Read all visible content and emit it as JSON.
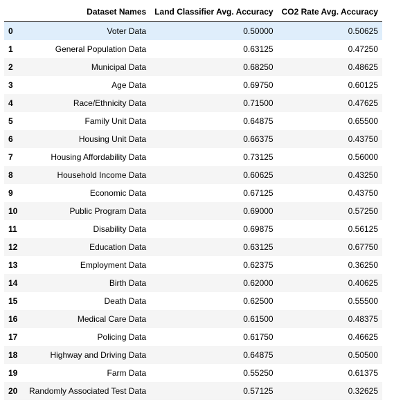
{
  "table": {
    "columns": [
      "",
      "Dataset Names",
      "Land Classifier Avg. Accuracy",
      "CO2 Rate Avg. Accuracy"
    ],
    "rows": [
      {
        "index": "0",
        "name": "Voter Data",
        "land": "0.50000",
        "co2": "0.50625"
      },
      {
        "index": "1",
        "name": "General Population Data",
        "land": "0.63125",
        "co2": "0.47250"
      },
      {
        "index": "2",
        "name": "Municipal Data",
        "land": "0.68250",
        "co2": "0.48625"
      },
      {
        "index": "3",
        "name": "Age Data",
        "land": "0.69750",
        "co2": "0.60125"
      },
      {
        "index": "4",
        "name": "Race/Ethnicity Data",
        "land": "0.71500",
        "co2": "0.47625"
      },
      {
        "index": "5",
        "name": "Family Unit Data",
        "land": "0.64875",
        "co2": "0.65500"
      },
      {
        "index": "6",
        "name": "Housing Unit Data",
        "land": "0.66375",
        "co2": "0.43750"
      },
      {
        "index": "7",
        "name": "Housing Affordability Data",
        "land": "0.73125",
        "co2": "0.56000"
      },
      {
        "index": "8",
        "name": "Household Income Data",
        "land": "0.60625",
        "co2": "0.43250"
      },
      {
        "index": "9",
        "name": "Economic Data",
        "land": "0.67125",
        "co2": "0.43750"
      },
      {
        "index": "10",
        "name": "Public Program Data",
        "land": "0.69000",
        "co2": "0.57250"
      },
      {
        "index": "11",
        "name": "Disability Data",
        "land": "0.69875",
        "co2": "0.56125"
      },
      {
        "index": "12",
        "name": "Education Data",
        "land": "0.63125",
        "co2": "0.67750"
      },
      {
        "index": "13",
        "name": "Employment Data",
        "land": "0.62375",
        "co2": "0.36250"
      },
      {
        "index": "14",
        "name": "Birth Data",
        "land": "0.62000",
        "co2": "0.40625"
      },
      {
        "index": "15",
        "name": "Death Data",
        "land": "0.62500",
        "co2": "0.55500"
      },
      {
        "index": "16",
        "name": "Medical Care Data",
        "land": "0.61500",
        "co2": "0.48375"
      },
      {
        "index": "17",
        "name": "Policing Data",
        "land": "0.61750",
        "co2": "0.46625"
      },
      {
        "index": "18",
        "name": "Highway and Driving Data",
        "land": "0.64875",
        "co2": "0.50500"
      },
      {
        "index": "19",
        "name": "Farm Data",
        "land": "0.55250",
        "co2": "0.61375"
      },
      {
        "index": "20",
        "name": "Randomly Associated Test Data",
        "land": "0.57125",
        "co2": "0.32625"
      }
    ],
    "highlighted_row_index": 0
  },
  "colors": {
    "header_border": "#000000",
    "stripe": "#f5f5f5",
    "hover": "#dfeefb"
  }
}
